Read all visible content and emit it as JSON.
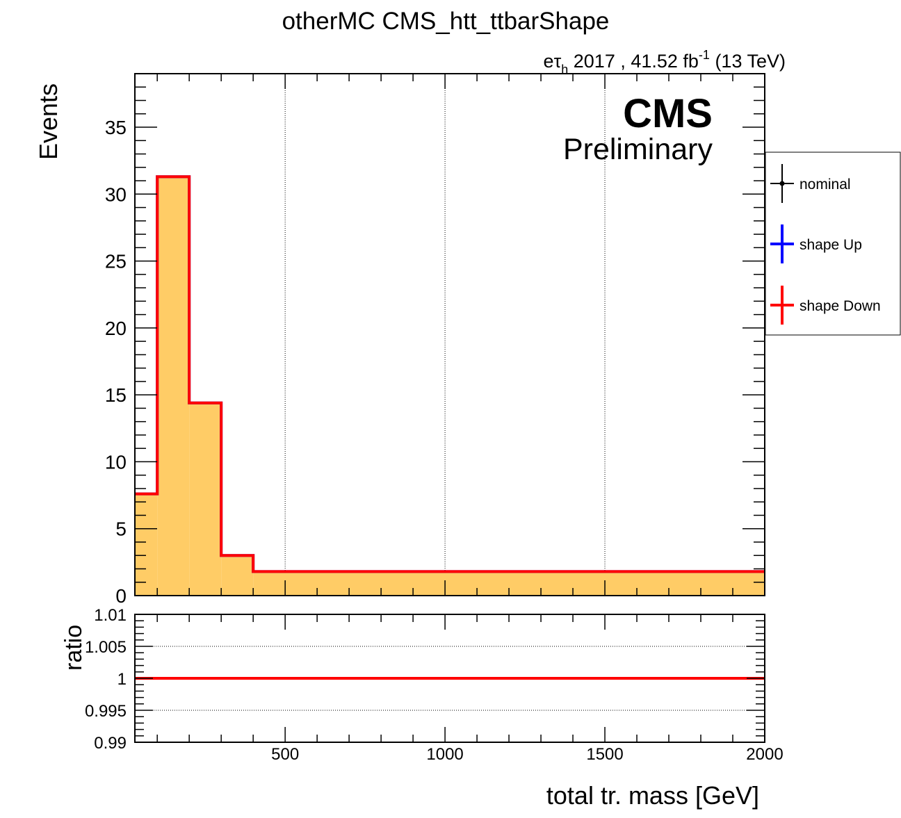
{
  "chart_data": [
    {
      "type": "histogram",
      "title": "otherMC CMS_htt_ttbarShape",
      "lumi_label": {
        "channel_prefix": "e",
        "channel_tau": "τ",
        "channel_sub": "h",
        "text_before_exp": " 2017 , 41.52 fb",
        "exponent": "-1",
        "text_after_exp": " (13 TeV)"
      },
      "cms_label": "CMS",
      "cms_sublabel": "Preliminary",
      "xlabel": "total tr. mass [GeV]",
      "ylabel": "Events",
      "xlim": [
        30,
        2000
      ],
      "ylim": [
        0,
        39
      ],
      "x_ticks": [
        {
          "value": 500,
          "label": "500"
        },
        {
          "value": 1000,
          "label": "1000"
        },
        {
          "value": 1500,
          "label": "1500"
        },
        {
          "value": 2000,
          "label": "2000"
        }
      ],
      "y_ticks": [
        {
          "value": 0,
          "label": "0"
        },
        {
          "value": 5,
          "label": "5"
        },
        {
          "value": 10,
          "label": "10"
        },
        {
          "value": 15,
          "label": "15"
        },
        {
          "value": 20,
          "label": "20"
        },
        {
          "value": 25,
          "label": "25"
        },
        {
          "value": 30,
          "label": "30"
        },
        {
          "value": 35,
          "label": "35"
        }
      ],
      "bin_edges": [
        30,
        100,
        200,
        300,
        400,
        2000
      ],
      "grid": "vertical dotted",
      "legend_position": "right",
      "series": [
        {
          "name": "nominal",
          "color": "#000000",
          "fill": "#ffcc66",
          "style": "filled",
          "values": [
            7.6,
            31.3,
            14.4,
            3.0,
            1.8
          ]
        },
        {
          "name": "shape Up",
          "color": "#0000ff",
          "style": "line",
          "values": [
            7.6,
            31.3,
            14.4,
            3.0,
            1.8
          ]
        },
        {
          "name": "shape Down",
          "color": "#ff0000",
          "style": "line",
          "values": [
            7.6,
            31.3,
            14.4,
            3.0,
            1.8
          ]
        }
      ]
    },
    {
      "type": "line",
      "ylabel": "ratio",
      "xlim": [
        30,
        2000
      ],
      "ylim": [
        0.99,
        1.01
      ],
      "x_ticks": [
        {
          "value": 500,
          "label": "500"
        },
        {
          "value": 1000,
          "label": "1000"
        },
        {
          "value": 1500,
          "label": "1500"
        },
        {
          "value": 2000,
          "label": "2000"
        }
      ],
      "y_ticks": [
        {
          "value": 0.99,
          "label": "0.99"
        },
        {
          "value": 0.995,
          "label": "0.995"
        },
        {
          "value": 1,
          "label": "1"
        },
        {
          "value": 1.005,
          "label": "1.005"
        },
        {
          "value": 1.01,
          "label": "1.01"
        }
      ],
      "grid": "horizontal dotted",
      "series": [
        {
          "name": "shape Up",
          "color": "#0000ff",
          "x": [
            30,
            2000
          ],
          "y": [
            1,
            1
          ]
        },
        {
          "name": "shape Down",
          "color": "#ff0000",
          "x": [
            30,
            2000
          ],
          "y": [
            1,
            1
          ]
        }
      ]
    }
  ]
}
